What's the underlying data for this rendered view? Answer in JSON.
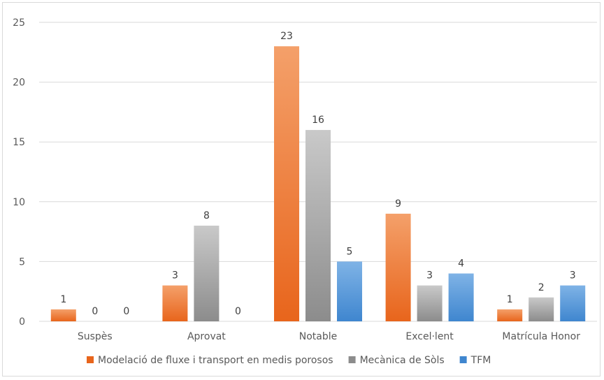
{
  "chart_data": {
    "type": "bar",
    "categories": [
      "Suspès",
      "Aprovat",
      "Notable",
      "Excel·lent",
      "Matrícula Honor"
    ],
    "series": [
      {
        "name": "Modelació de fluxe i transport en medis porosos",
        "values": [
          1,
          3,
          23,
          9,
          1
        ],
        "color_top": "#f4a06a",
        "color_bottom": "#e8651c"
      },
      {
        "name": "Mecànica de Sòls",
        "values": [
          0,
          8,
          16,
          3,
          2
        ],
        "color_top": "#c9c9c9",
        "color_bottom": "#8c8c8c"
      },
      {
        "name": "TFM",
        "values": [
          0,
          0,
          5,
          4,
          3
        ],
        "color_top": "#7fb3e6",
        "color_bottom": "#3f86cf"
      }
    ],
    "ylim": [
      0,
      25
    ],
    "yticks": [
      0,
      5,
      10,
      15,
      20,
      25
    ],
    "grid": true,
    "legend": "bottom",
    "title": "",
    "xlabel": "",
    "ylabel": ""
  },
  "colors": {
    "grid": "#d9d9d9",
    "axis_text": "#595959",
    "label_text": "#404040"
  }
}
